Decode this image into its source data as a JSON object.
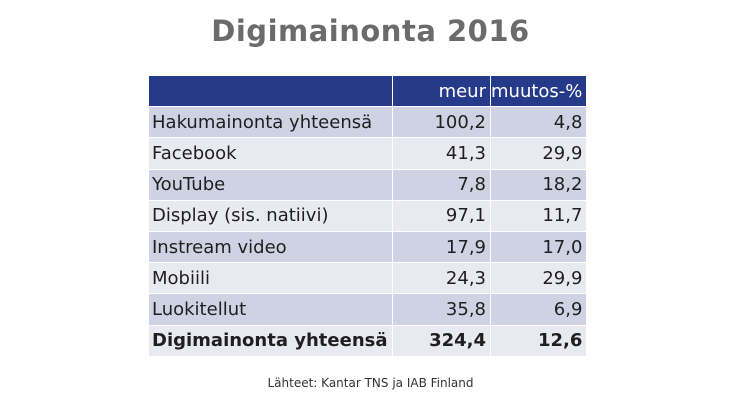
{
  "title": "Digimainonta 2016",
  "source": "Lähteet: Kantar TNS ja IAB Finland",
  "chart_data": {
    "type": "table",
    "title": "Digimainonta 2016",
    "columns": [
      "",
      "meur",
      "muutos-%"
    ],
    "rows": [
      {
        "label": "Hakumainonta yhteensä",
        "meur": "100,2",
        "change": "4,8"
      },
      {
        "label": "Facebook",
        "meur": "41,3",
        "change": "29,9"
      },
      {
        "label": "YouTube",
        "meur": "7,8",
        "change": "18,2"
      },
      {
        "label": "Display (sis. natiivi)",
        "meur": "97,1",
        "change": "11,7"
      },
      {
        "label": "Instream video",
        "meur": "17,9",
        "change": "17,0"
      },
      {
        "label": "Mobiili",
        "meur": "24,3",
        "change": "29,9"
      },
      {
        "label": "Luokitellut",
        "meur": "35,8",
        "change": "6,9"
      },
      {
        "label": "Digimainonta yhteensä",
        "meur": "324,4",
        "change": "12,6"
      }
    ]
  }
}
